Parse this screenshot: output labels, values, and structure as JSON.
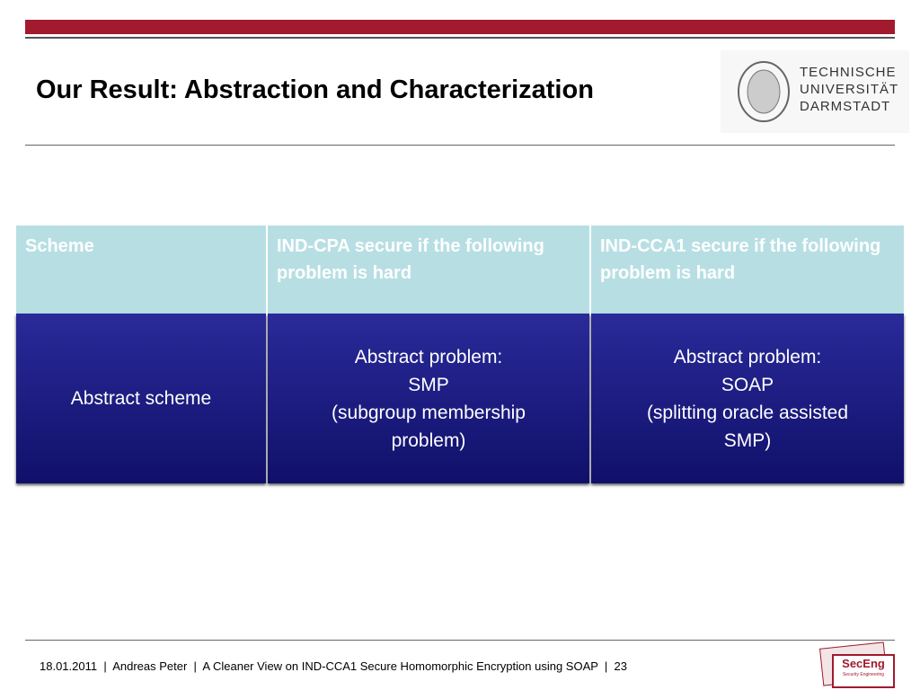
{
  "header": {
    "title": "Our Result: Abstraction and Characterization",
    "logo": [
      "TECHNISCHE",
      "UNIVERSITÄT",
      "DARMSTADT"
    ]
  },
  "table": {
    "header": [
      "Scheme",
      "IND-CPA secure if the following problem is hard",
      "IND-CCA1 secure if the following problem is hard"
    ],
    "rows": [
      [
        [
          "Abstract scheme"
        ],
        [
          "Abstract problem:",
          "SMP",
          "(subgroup membership",
          "problem)"
        ],
        [
          "Abstract problem:",
          "SOAP",
          "(splitting oracle assisted",
          "SMP)"
        ]
      ]
    ]
  },
  "footer": {
    "text": "18.01.2011  |  Andreas Peter  |  A Cleaner View on IND-CCA1 Secure Homomorphic Encryption using SOAP  |  23",
    "badge": "SecEng",
    "badge_sub": "Security Engineering"
  }
}
